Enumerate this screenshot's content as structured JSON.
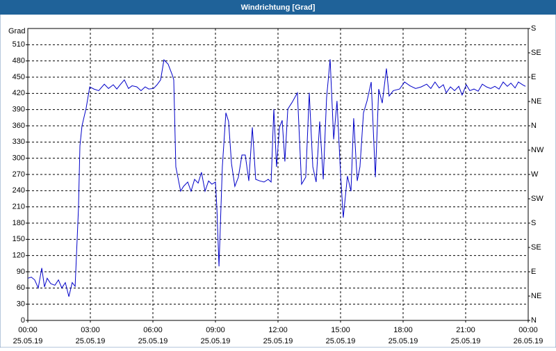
{
  "chart_data": {
    "type": "line",
    "title": "Windrichtung [Grad]",
    "y_label": "Grad",
    "color": "#0000c8",
    "grid": true,
    "xlim": [
      0,
      24
    ],
    "xticks": [
      {
        "value": 0,
        "label": [
          "00:00",
          "25.05.19"
        ]
      },
      {
        "value": 3,
        "label": [
          "03:00",
          "25.05.19"
        ]
      },
      {
        "value": 6,
        "label": [
          "06:00",
          "25.05.19"
        ]
      },
      {
        "value": 9,
        "label": [
          "09:00",
          "25.05.19"
        ]
      },
      {
        "value": 12,
        "label": [
          "12:00",
          "25.05.19"
        ]
      },
      {
        "value": 15,
        "label": [
          "15:00",
          "25.05.19"
        ]
      },
      {
        "value": 18,
        "label": [
          "18:00",
          "25.05.19"
        ]
      },
      {
        "value": 21,
        "label": [
          "21:00",
          "25.05.19"
        ]
      },
      {
        "value": 24,
        "label": [
          "00:00",
          "26.05.19"
        ]
      }
    ],
    "ylim": [
      0,
      540
    ],
    "yticks": [
      0,
      30,
      60,
      90,
      120,
      150,
      180,
      210,
      240,
      270,
      300,
      330,
      360,
      390,
      420,
      450,
      480,
      510
    ],
    "y2lim": [
      0,
      540
    ],
    "y2ticks": [
      {
        "value": 0,
        "label": "N"
      },
      {
        "value": 45,
        "label": "NE"
      },
      {
        "value": 90,
        "label": "E"
      },
      {
        "value": 135,
        "label": "SE"
      },
      {
        "value": 180,
        "label": "S"
      },
      {
        "value": 225,
        "label": "SW"
      },
      {
        "value": 270,
        "label": "W"
      },
      {
        "value": 315,
        "label": "NW"
      },
      {
        "value": 360,
        "label": "N"
      },
      {
        "value": 405,
        "label": "NE"
      },
      {
        "value": 450,
        "label": "E"
      },
      {
        "value": 495,
        "label": "SE"
      },
      {
        "value": 540,
        "label": "S"
      }
    ],
    "x": [
      0,
      0.17,
      0.33,
      0.5,
      0.67,
      0.8,
      0.93,
      1.1,
      1.3,
      1.47,
      1.63,
      1.8,
      1.97,
      2.13,
      2.27,
      2.43,
      2.5,
      2.6,
      2.8,
      2.97,
      3.17,
      3.4,
      3.67,
      3.87,
      4.1,
      4.27,
      4.43,
      4.63,
      4.83,
      5,
      5.23,
      5.43,
      5.63,
      5.8,
      6.03,
      6.2,
      6.37,
      6.53,
      6.73,
      6.93,
      7,
      7.1,
      7.33,
      7.47,
      7.67,
      7.83,
      8,
      8.17,
      8.33,
      8.5,
      8.67,
      8.83,
      9,
      9.07,
      9.17,
      9.33,
      9.5,
      9.63,
      9.77,
      9.93,
      10.1,
      10.27,
      10.43,
      10.6,
      10.77,
      10.93,
      11.13,
      11.33,
      11.53,
      11.67,
      11.8,
      11.93,
      12.07,
      12.2,
      12.33,
      12.47,
      12.67,
      12.93,
      13.13,
      13.33,
      13.5,
      13.67,
      13.83,
      14,
      14.17,
      14.33,
      14.5,
      14.67,
      14.83,
      15,
      15.13,
      15.33,
      15.5,
      15.63,
      15.8,
      15.93,
      16.1,
      16.27,
      16.47,
      16.67,
      16.83,
      17,
      17.2,
      17.33,
      17.53,
      17.83,
      18.07,
      18.33,
      18.6,
      18.87,
      19.13,
      19.33,
      19.53,
      19.73,
      19.93,
      20.07,
      20.27,
      20.47,
      20.67,
      20.83,
      21.03,
      21.2,
      21.4,
      21.6,
      21.8,
      22,
      22.2,
      22.4,
      22.6,
      22.8,
      23,
      23.17,
      23.37,
      23.53,
      23.73,
      23.87
    ],
    "values": [
      78,
      80,
      75,
      60,
      97,
      62,
      78,
      68,
      65,
      75,
      60,
      70,
      44,
      70,
      63,
      207,
      323,
      360,
      393,
      432,
      428,
      425,
      437,
      429,
      436,
      428,
      436,
      445,
      429,
      434,
      432,
      425,
      432,
      428,
      429,
      436,
      445,
      482,
      474,
      454,
      445,
      284,
      239,
      248,
      256,
      239,
      261,
      254,
      274,
      239,
      258,
      252,
      256,
      207,
      100,
      284,
      384,
      368,
      290,
      248,
      265,
      306,
      306,
      258,
      357,
      261,
      258,
      256,
      261,
      256,
      391,
      284,
      357,
      370,
      294,
      391,
      403,
      421,
      252,
      265,
      421,
      284,
      256,
      368,
      261,
      412,
      483,
      335,
      406,
      271,
      190,
      267,
      239,
      374,
      258,
      284,
      384,
      406,
      441,
      265,
      428,
      402,
      466,
      415,
      425,
      428,
      441,
      434,
      429,
      432,
      437,
      429,
      441,
      430,
      436,
      421,
      432,
      425,
      433,
      417,
      436,
      425,
      428,
      424,
      437,
      432,
      429,
      433,
      428,
      441,
      433,
      439,
      430,
      441,
      436,
      433
    ]
  }
}
